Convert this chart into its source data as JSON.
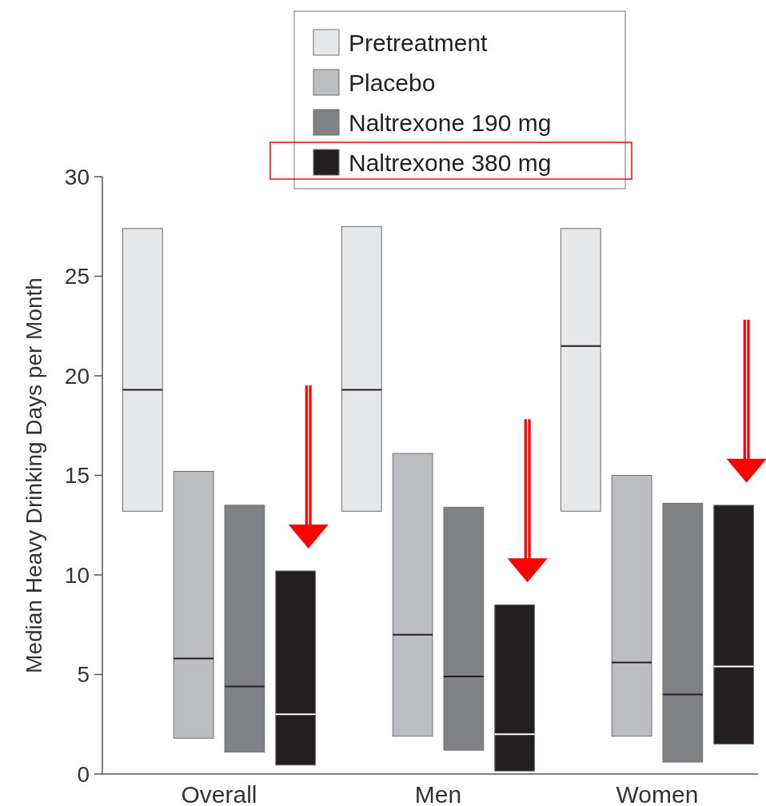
{
  "chart_data": {
    "type": "box",
    "ylabel": "Median Heavy Drinking Days per Month",
    "categories": [
      "Overall",
      "Men",
      "Women"
    ],
    "ylim": [
      0,
      30
    ],
    "yticks": [
      0,
      5,
      10,
      15,
      20,
      25,
      30
    ],
    "legend": "top",
    "grid": false,
    "series": [
      {
        "name": "Pretreatment",
        "color": "#e6e7e9",
        "boxes": [
          {
            "low": 13.2,
            "q1": 13.2,
            "median": 19.3,
            "q3": 27.4,
            "high": 27.4
          },
          {
            "low": 13.2,
            "q1": 13.2,
            "median": 19.3,
            "q3": 27.5,
            "high": 27.5
          },
          {
            "low": 13.2,
            "q1": 13.2,
            "median": 21.5,
            "q3": 27.4,
            "high": 27.4
          }
        ]
      },
      {
        "name": "Placebo",
        "color": "#bcbdc0",
        "boxes": [
          {
            "low": 1.8,
            "q1": 1.8,
            "median": 5.8,
            "q3": 15.2,
            "high": 15.2
          },
          {
            "low": 1.9,
            "q1": 1.9,
            "median": 7.0,
            "q3": 16.1,
            "high": 16.1
          },
          {
            "low": 1.9,
            "q1": 1.9,
            "median": 5.6,
            "q3": 15.0,
            "high": 15.0
          }
        ]
      },
      {
        "name": "Naltrexone 190 mg",
        "color": "#808184",
        "boxes": [
          {
            "low": 1.1,
            "q1": 1.1,
            "median": 4.4,
            "q3": 13.5,
            "high": 13.5
          },
          {
            "low": 1.2,
            "q1": 1.2,
            "median": 4.9,
            "q3": 13.4,
            "high": 13.4
          },
          {
            "low": 0.6,
            "q1": 0.6,
            "median": 4.0,
            "q3": 13.6,
            "high": 13.6
          }
        ]
      },
      {
        "name": "Naltrexone 380 mg",
        "color": "#231f20",
        "boxes": [
          {
            "low": 0.45,
            "q1": 0.45,
            "median": 3.0,
            "q3": 10.2,
            "high": 10.2
          },
          {
            "low": 0.15,
            "q1": 0.15,
            "median": 2.0,
            "q3": 8.5,
            "high": 8.5
          },
          {
            "low": 1.5,
            "q1": 1.5,
            "median": 5.4,
            "q3": 13.5,
            "high": 13.5
          }
        ]
      }
    ]
  }
}
